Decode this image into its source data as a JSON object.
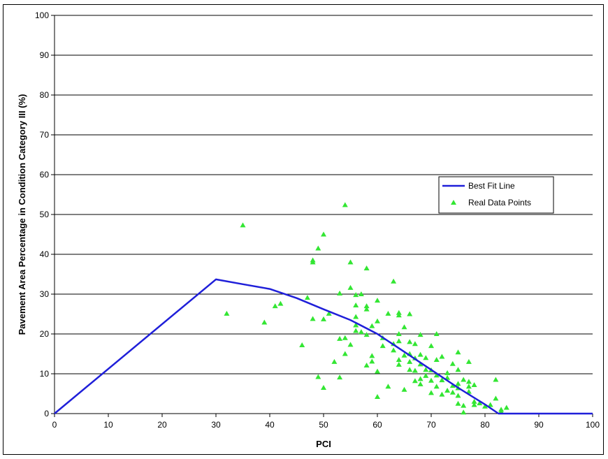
{
  "chart_data": {
    "type": "scatter",
    "title": "",
    "xlabel": "PCI",
    "ylabel": "Pavement Area Percentage in Condition Category III (%)",
    "xlim": [
      0,
      100
    ],
    "ylim": [
      0,
      100
    ],
    "xticks": [
      "0",
      "10",
      "20",
      "30",
      "40",
      "50",
      "60",
      "70",
      "80",
      "90",
      "100"
    ],
    "yticks": [
      "0",
      "10",
      "20",
      "30",
      "40",
      "50",
      "60",
      "70",
      "80",
      "90",
      "100"
    ],
    "grid": "horizontal",
    "legend_position": "right",
    "colors": {
      "fit": "#1f1fd9",
      "points": "#33e633"
    },
    "series": [
      {
        "name": "Best Fit Line",
        "kind": "line",
        "x": [
          0,
          30,
          35,
          40,
          45,
          50,
          55,
          60,
          65,
          70,
          75,
          80,
          82.5,
          100
        ],
        "y": [
          0,
          33.7,
          32.5,
          31.3,
          29,
          26.2,
          23.5,
          20,
          15.5,
          11,
          6.5,
          2.3,
          0,
          0
        ]
      },
      {
        "name": "Real Data Points",
        "kind": "scatter",
        "points": [
          [
            32,
            25.1
          ],
          [
            35,
            47.3
          ],
          [
            39,
            22.9
          ],
          [
            41,
            27.0
          ],
          [
            42,
            27.6
          ],
          [
            46,
            17.2
          ],
          [
            47,
            29.1
          ],
          [
            48,
            38.5
          ],
          [
            48,
            38.0
          ],
          [
            48,
            23.8
          ],
          [
            49,
            41.5
          ],
          [
            49,
            9.2
          ],
          [
            50,
            45.0
          ],
          [
            50,
            23.7
          ],
          [
            50,
            6.5
          ],
          [
            51,
            25.1
          ],
          [
            52,
            13.0
          ],
          [
            53,
            30.2
          ],
          [
            53,
            18.8
          ],
          [
            53,
            9.1
          ],
          [
            54,
            52.4
          ],
          [
            54,
            19.0
          ],
          [
            54,
            15.0
          ],
          [
            55,
            38.0
          ],
          [
            55,
            31.6
          ],
          [
            56,
            29.8
          ],
          [
            56,
            27.2
          ],
          [
            56,
            24.3
          ],
          [
            56,
            22.2
          ],
          [
            56,
            20.8
          ],
          [
            57,
            20.5
          ],
          [
            58,
            36.5
          ],
          [
            58,
            27.0
          ],
          [
            58,
            26.2
          ],
          [
            58,
            19.8
          ],
          [
            58,
            12.1
          ],
          [
            59,
            22.0
          ],
          [
            59,
            14.5
          ],
          [
            59,
            13.1
          ],
          [
            60,
            28.4
          ],
          [
            60,
            23.2
          ],
          [
            60,
            10.6
          ],
          [
            60,
            4.2
          ],
          [
            61,
            19.0
          ],
          [
            62,
            25.1
          ],
          [
            62,
            6.8
          ],
          [
            63,
            33.2
          ],
          [
            63,
            17.5
          ],
          [
            63,
            15.9
          ],
          [
            64,
            25.3
          ],
          [
            64,
            24.7
          ],
          [
            64,
            20.0
          ],
          [
            64,
            18.2
          ],
          [
            64,
            13.5
          ],
          [
            64,
            12.3
          ],
          [
            65,
            21.7
          ],
          [
            65,
            14.6
          ],
          [
            66,
            25.0
          ],
          [
            66,
            18.0
          ],
          [
            66,
            15.0
          ],
          [
            66,
            13.0
          ],
          [
            66,
            11.0
          ],
          [
            67,
            17.5
          ],
          [
            67,
            13.9
          ],
          [
            67,
            10.8
          ],
          [
            67,
            8.2
          ],
          [
            68,
            19.8
          ],
          [
            68,
            14.8
          ],
          [
            68,
            12.4
          ],
          [
            68,
            8.7
          ],
          [
            68,
            7.4
          ],
          [
            69,
            11.0
          ],
          [
            69,
            9.5
          ],
          [
            70,
            17.0
          ],
          [
            70,
            10.9
          ],
          [
            70,
            8.3
          ],
          [
            71,
            20.0
          ],
          [
            71,
            13.5
          ],
          [
            71,
            9.6
          ],
          [
            71,
            6.8
          ],
          [
            72,
            14.3
          ],
          [
            72,
            8.4
          ],
          [
            72,
            4.8
          ],
          [
            73,
            5.8
          ],
          [
            73,
            9.0
          ],
          [
            74,
            7.0
          ],
          [
            74,
            5.3
          ],
          [
            75,
            15.4
          ],
          [
            75,
            11.0
          ],
          [
            75,
            7.5
          ],
          [
            75,
            6.4
          ],
          [
            75,
            4.5
          ],
          [
            75,
            2.5
          ],
          [
            76,
            2.0
          ],
          [
            76,
            0.3
          ],
          [
            77,
            13.0
          ],
          [
            77,
            8.0
          ],
          [
            77,
            5.5
          ],
          [
            78,
            7.2
          ],
          [
            78,
            3.0
          ],
          [
            78,
            2.2
          ],
          [
            79,
            2.6
          ],
          [
            80,
            1.8
          ],
          [
            81,
            2.2
          ],
          [
            82,
            8.5
          ],
          [
            82,
            3.8
          ],
          [
            83,
            1.0
          ],
          [
            83,
            0.5
          ],
          [
            84,
            1.5
          ],
          [
            73,
            10.2
          ],
          [
            69,
            14.0
          ],
          [
            76,
            8.5
          ],
          [
            74,
            12.5
          ],
          [
            77,
            6.8
          ],
          [
            70,
            5.2
          ],
          [
            65,
            6.0
          ],
          [
            61,
            17.0
          ],
          [
            57,
            30.0
          ],
          [
            55,
            17.3
          ]
        ]
      }
    ]
  }
}
